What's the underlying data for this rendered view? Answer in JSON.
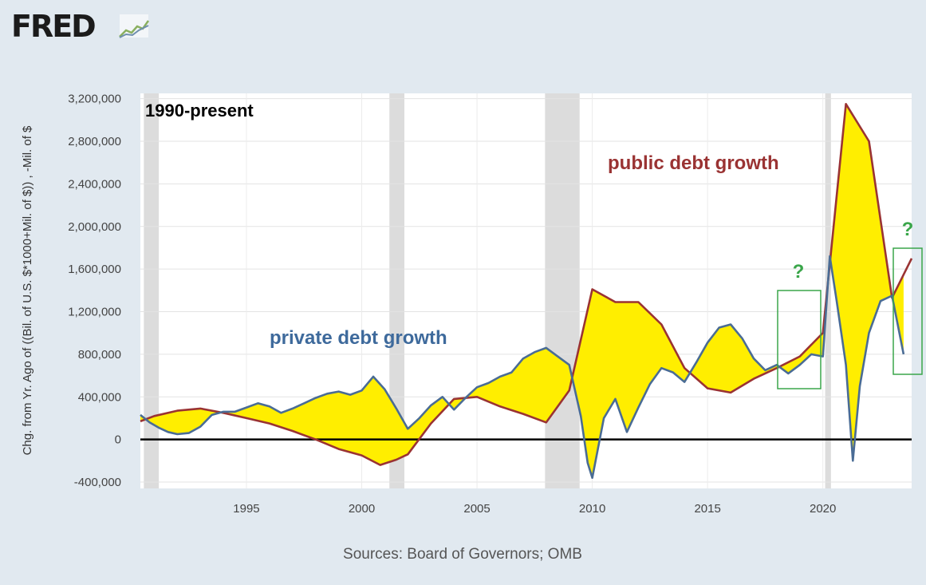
{
  "logo": {
    "text": "FRED"
  },
  "source": "Sources: Board of Governors; OMB",
  "colors": {
    "background": "#e1e9f0",
    "plot_background": "#ffffff",
    "recession": "#dcdcdc",
    "private_line": "#4a6c95",
    "public_line": "#9a3333",
    "fill": "#ffee00",
    "zero_line": "#000000",
    "annotation_private": "#3e6a9c",
    "annotation_public": "#9a3333",
    "question": "#3aa64a"
  },
  "chart_data": {
    "type": "line",
    "title": "",
    "ylabel": "Chg. from Yr. Ago of ((Bil. of U.S. $*1000+Mil. of $)) , -Mil. of $",
    "xlabel": "",
    "xlim": [
      1990.4,
      2023.85
    ],
    "ylim": [
      -460000,
      3250000
    ],
    "x_ticks": [
      1995,
      2000,
      2005,
      2010,
      2015,
      2020
    ],
    "x_tick_labels": [
      "1995",
      "2000",
      "2005",
      "2010",
      "2015",
      "2020"
    ],
    "y_ticks": [
      -400000,
      0,
      400000,
      800000,
      1200000,
      1600000,
      2000000,
      2400000,
      2800000,
      3200000
    ],
    "y_tick_labels": [
      "-400,000",
      "0",
      "400,000",
      "800,000",
      "1,200,000",
      "1,600,000",
      "2,000,000",
      "2,400,000",
      "2,800,000",
      "3,200,000"
    ],
    "recessions": [
      [
        1990.55,
        1991.2
      ],
      [
        2001.2,
        2001.85
      ],
      [
        2007.95,
        2009.45
      ],
      [
        2020.1,
        2020.35
      ]
    ],
    "series": [
      {
        "name": "private debt growth",
        "x": [
          1990.4,
          1990.8,
          1991.2,
          1991.6,
          1992.0,
          1992.5,
          1993.0,
          1993.5,
          1994.0,
          1994.5,
          1995.0,
          1995.5,
          1996.0,
          1996.5,
          1997.0,
          1997.5,
          1998.0,
          1998.5,
          1999.0,
          1999.5,
          2000.0,
          2000.5,
          2001.0,
          2001.5,
          2002.0,
          2002.5,
          2003.0,
          2003.5,
          2004.0,
          2004.5,
          2005.0,
          2005.5,
          2006.0,
          2006.5,
          2007.0,
          2007.5,
          2008.0,
          2008.5,
          2009.0,
          2009.5,
          2009.8,
          2010.0,
          2010.5,
          2011.0,
          2011.5,
          2012.0,
          2012.5,
          2013.0,
          2013.5,
          2014.0,
          2014.5,
          2015.0,
          2015.5,
          2016.0,
          2016.5,
          2017.0,
          2017.5,
          2018.0,
          2018.5,
          2019.0,
          2019.5,
          2020.0,
          2020.3,
          2020.6,
          2021.0,
          2021.3,
          2021.6,
          2022.0,
          2022.5,
          2023.0,
          2023.5
        ],
        "values": [
          230000,
          160000,
          110000,
          70000,
          50000,
          60000,
          120000,
          230000,
          260000,
          260000,
          300000,
          340000,
          310000,
          250000,
          290000,
          340000,
          390000,
          430000,
          450000,
          420000,
          460000,
          590000,
          470000,
          290000,
          100000,
          200000,
          320000,
          400000,
          280000,
          390000,
          490000,
          530000,
          590000,
          630000,
          760000,
          820000,
          860000,
          780000,
          700000,
          220000,
          -220000,
          -360000,
          200000,
          380000,
          70000,
          300000,
          520000,
          670000,
          630000,
          540000,
          720000,
          910000,
          1050000,
          1080000,
          950000,
          760000,
          650000,
          700000,
          620000,
          700000,
          800000,
          780000,
          1720000,
          1300000,
          700000,
          -200000,
          500000,
          1000000,
          1300000,
          1350000,
          800000
        ]
      },
      {
        "name": "public debt growth",
        "x": [
          1990.4,
          1991.0,
          1992.0,
          1993.0,
          1994.0,
          1995.0,
          1996.0,
          1997.0,
          1998.0,
          1999.0,
          2000.0,
          2000.8,
          2001.5,
          2002.0,
          2003.0,
          2004.0,
          2005.0,
          2006.0,
          2007.0,
          2008.0,
          2009.0,
          2010.0,
          2011.0,
          2012.0,
          2013.0,
          2014.0,
          2015.0,
          2016.0,
          2017.0,
          2018.0,
          2019.0,
          2020.0,
          2021.0,
          2022.0,
          2023.0,
          2023.85
        ],
        "values": [
          170000,
          220000,
          270000,
          290000,
          250000,
          200000,
          150000,
          80000,
          0,
          -90000,
          -150000,
          -240000,
          -190000,
          -140000,
          150000,
          380000,
          400000,
          310000,
          240000,
          160000,
          460000,
          1410000,
          1290000,
          1290000,
          1080000,
          670000,
          480000,
          440000,
          570000,
          670000,
          780000,
          1000000,
          3150000,
          2800000,
          1330000,
          1700000
        ]
      }
    ]
  },
  "annotations": {
    "period_label": "1990-present",
    "private_label": "private debt growth",
    "public_label": "public debt growth",
    "question_1": "?",
    "question_2": "?"
  }
}
